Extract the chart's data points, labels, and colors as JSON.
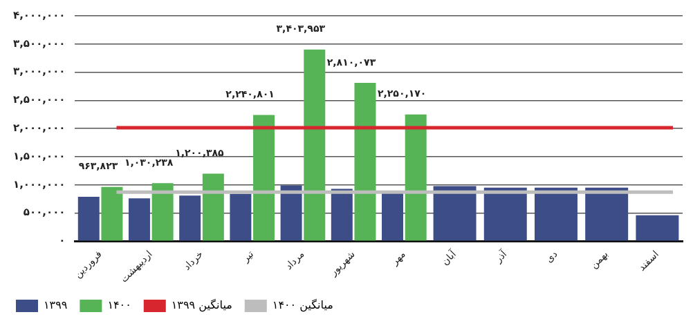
{
  "chart_data": {
    "type": "bar",
    "categories": [
      "فروردین",
      "اردیبهشت",
      "خرداد",
      "تیر",
      "مرداد",
      "شهریور",
      "مهر",
      "آبان",
      "آذر",
      "دی",
      "بهمن",
      "اسفند"
    ],
    "series": [
      {
        "name": "۱۳۹۹",
        "color": "#3c4d88",
        "values": [
          790000,
          760000,
          810000,
          840000,
          990000,
          930000,
          880000,
          980000,
          950000,
          950000,
          950000,
          460000
        ]
      },
      {
        "name": "۱۴۰۰",
        "color": "#56b356",
        "values": [
          963823,
          1030238,
          1200385,
          2240801,
          3403953,
          2810073,
          2250170,
          null,
          null,
          null,
          null,
          null
        ],
        "value_labels": [
          "۹۶۳,۸۲۳",
          "۱,۰۳۰,۲۳۸",
          "۱,۲۰۰,۳۸۵",
          "۲,۲۴۰,۸۰۱",
          "۳,۴۰۳,۹۵۳",
          "۲,۸۱۰,۰۷۳",
          "۲,۲۵۰,۱۷۰",
          null,
          null,
          null,
          null,
          null
        ]
      }
    ],
    "ylim": [
      0,
      4000000
    ],
    "yticks": [
      {
        "value": 0,
        "label": "۰"
      },
      {
        "value": 500000,
        "label": "۵۰۰,۰۰۰"
      },
      {
        "value": 1000000,
        "label": "۱,۰۰۰,۰۰۰"
      },
      {
        "value": 1500000,
        "label": "۱,۵۰۰,۰۰۰"
      },
      {
        "value": 2000000,
        "label": "۲,۰۰۰,۰۰۰"
      },
      {
        "value": 2500000,
        "label": "۲,۵۰۰,۰۰۰"
      },
      {
        "value": 3000000,
        "label": "۳,۰۰۰,۰۰۰"
      },
      {
        "value": 3500000,
        "label": "۳,۵۰۰,۰۰۰"
      },
      {
        "value": 4000000,
        "label": "۴,۰۰۰,۰۰۰"
      }
    ],
    "ref_lines": [
      {
        "axis": "y",
        "value": 2015000,
        "label": "میانگین ۱۳۹۹",
        "color": "#d7262e"
      },
      {
        "axis": "y",
        "value": 870000,
        "label": "میانگین ۱۴۰۰",
        "color": "#bdbdbd"
      }
    ],
    "grid": "y",
    "legend": "bottom"
  }
}
